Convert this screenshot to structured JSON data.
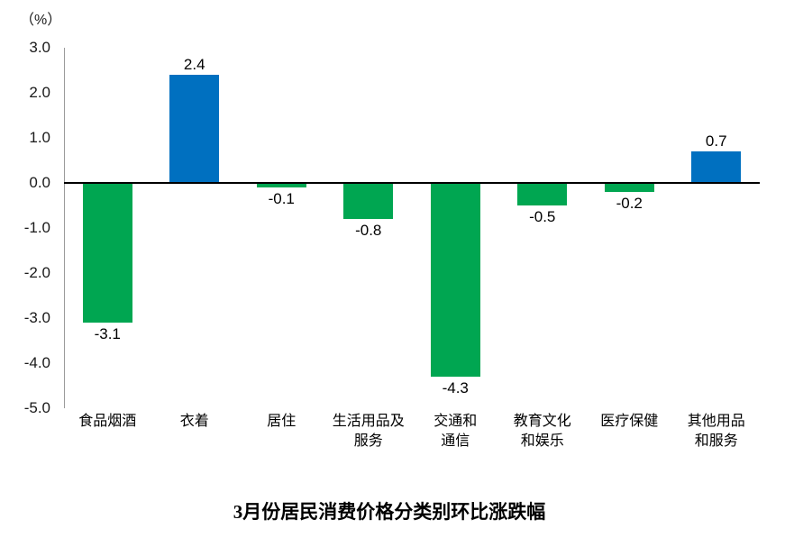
{
  "chart_data": {
    "type": "bar",
    "title": "3月份居民消费价格分类别环比涨跌幅",
    "unit_label": "（%）",
    "categories": [
      "食品烟酒",
      "衣着",
      "居住",
      "生活用品及\n服务",
      "交通和\n通信",
      "教育文化\n和娱乐",
      "医疗保健",
      "其他用品\n和服务"
    ],
    "values": [
      -3.1,
      2.4,
      -0.1,
      -0.8,
      -4.3,
      -0.5,
      -0.2,
      0.7
    ],
    "data_labels": [
      "-3.1",
      "2.4",
      "-0.1",
      "-0.8",
      "-4.3",
      "-0.5",
      "-0.2",
      "0.7"
    ],
    "y_tick_labels": [
      "3.0",
      "2.0",
      "1.0",
      "0.0",
      "-1.0",
      "-2.0",
      "-3.0",
      "-4.0",
      "-5.0"
    ],
    "ylim": [
      -5.0,
      3.0
    ],
    "y_tick_step": 1.0,
    "grid": false,
    "legend": "none",
    "colors": {
      "positive_bar": "#0070C0",
      "negative_bar": "#00A651",
      "zero_line": "#000000",
      "y_axis_line": "#9b9b9b"
    }
  }
}
